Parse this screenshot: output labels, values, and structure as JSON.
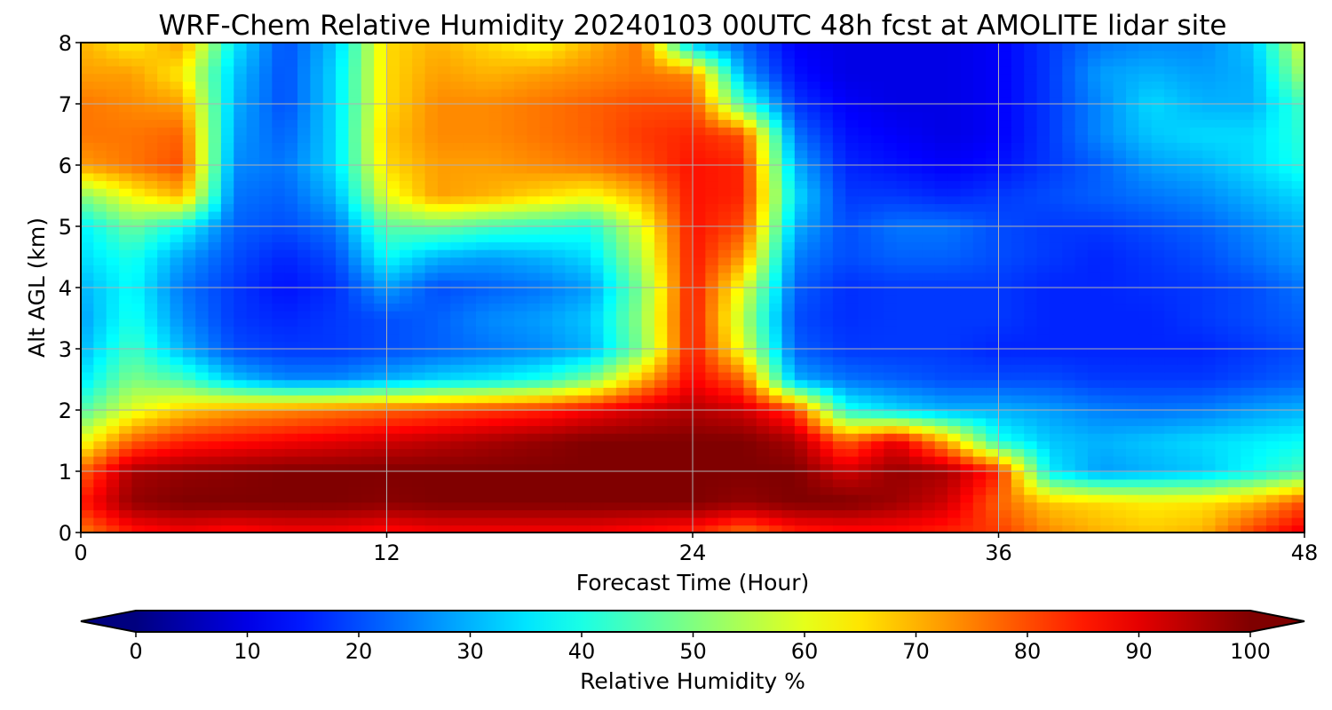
{
  "chart_data": {
    "type": "heatmap",
    "title": "WRF-Chem Relative Humidity 20240103 00UTC 48h fcst at AMOLITE lidar site",
    "xlabel": "Forecast Time (Hour)",
    "ylabel": "Alt AGL (km)",
    "xlim": [
      0,
      48
    ],
    "ylim": [
      0,
      8
    ],
    "x_ticks": [
      "0",
      "12",
      "24",
      "36",
      "48"
    ],
    "y_ticks": [
      "0",
      "1",
      "2",
      "3",
      "4",
      "5",
      "6",
      "7",
      "8"
    ],
    "grid": true,
    "colormap": "jet",
    "colorbar": {
      "label": "Relative Humidity %",
      "range": [
        0,
        100
      ],
      "ticks": [
        "0",
        "10",
        "20",
        "30",
        "40",
        "50",
        "60",
        "70",
        "80",
        "90",
        "100"
      ],
      "extend": "both",
      "orientation": "horizontal",
      "placement": "bottom"
    },
    "x": [
      0,
      2,
      4,
      6,
      8,
      10,
      12,
      14,
      16,
      18,
      20,
      22,
      24,
      26,
      28,
      30,
      32,
      34,
      36,
      38,
      40,
      42,
      44,
      46,
      48
    ],
    "y": [
      0,
      0.5,
      1,
      1.5,
      2,
      2.5,
      3,
      3.5,
      4,
      4.5,
      5,
      5.5,
      6,
      6.5,
      7,
      7.5,
      8
    ],
    "z": [
      [
        75,
        85,
        88,
        86,
        88,
        88,
        86,
        88,
        88,
        88,
        88,
        86,
        84,
        76,
        84,
        86,
        86,
        84,
        82,
        74,
        70,
        68,
        70,
        82,
        90
      ],
      [
        85,
        98,
        100,
        100,
        100,
        100,
        99,
        100,
        100,
        100,
        100,
        100,
        100,
        98,
        100,
        100,
        97,
        92,
        78,
        68,
        66,
        64,
        65,
        70,
        80
      ],
      [
        78,
        96,
        98,
        99,
        100,
        100,
        100,
        100,
        100,
        100,
        100,
        100,
        100,
        100,
        100,
        92,
        98,
        96,
        84,
        36,
        28,
        30,
        32,
        38,
        45
      ],
      [
        60,
        78,
        84,
        86,
        88,
        90,
        92,
        94,
        96,
        98,
        100,
        100,
        100,
        100,
        96,
        78,
        90,
        70,
        40,
        32,
        30,
        32,
        34,
        36,
        38
      ],
      [
        45,
        60,
        68,
        72,
        74,
        76,
        78,
        80,
        82,
        84,
        88,
        92,
        95,
        92,
        82,
        40,
        34,
        30,
        30,
        28,
        25,
        24,
        25,
        28,
        30
      ],
      [
        35,
        50,
        45,
        32,
        26,
        26,
        30,
        34,
        36,
        40,
        50,
        70,
        88,
        78,
        30,
        24,
        22,
        20,
        20,
        20,
        18,
        18,
        18,
        20,
        22
      ],
      [
        30,
        44,
        30,
        20,
        18,
        18,
        20,
        22,
        24,
        26,
        30,
        50,
        86,
        60,
        22,
        18,
        18,
        18,
        16,
        16,
        16,
        16,
        16,
        18,
        20
      ],
      [
        28,
        40,
        26,
        18,
        16,
        18,
        20,
        22,
        26,
        28,
        32,
        52,
        86,
        55,
        20,
        17,
        18,
        18,
        18,
        16,
        16,
        16,
        18,
        20,
        22
      ],
      [
        30,
        38,
        24,
        18,
        14,
        17,
        28,
        20,
        22,
        24,
        28,
        50,
        86,
        60,
        22,
        17,
        18,
        18,
        18,
        16,
        16,
        17,
        18,
        20,
        24
      ],
      [
        34,
        40,
        28,
        20,
        16,
        20,
        38,
        30,
        28,
        30,
        34,
        55,
        86,
        72,
        25,
        20,
        22,
        22,
        20,
        18,
        16,
        18,
        20,
        24,
        28
      ],
      [
        36,
        48,
        38,
        22,
        20,
        24,
        46,
        48,
        44,
        42,
        40,
        60,
        86,
        80,
        30,
        20,
        24,
        24,
        20,
        18,
        18,
        20,
        22,
        26,
        30
      ],
      [
        50,
        62,
        70,
        24,
        22,
        30,
        60,
        72,
        70,
        66,
        62,
        70,
        86,
        84,
        35,
        18,
        18,
        16,
        18,
        20,
        22,
        24,
        26,
        30,
        34
      ],
      [
        72,
        76,
        80,
        26,
        24,
        34,
        66,
        72,
        72,
        74,
        76,
        80,
        86,
        84,
        30,
        16,
        14,
        12,
        14,
        18,
        22,
        28,
        30,
        34,
        40
      ],
      [
        76,
        76,
        78,
        28,
        22,
        34,
        68,
        74,
        74,
        76,
        78,
        82,
        84,
        80,
        24,
        14,
        12,
        10,
        12,
        18,
        26,
        32,
        34,
        34,
        42
      ],
      [
        76,
        74,
        72,
        30,
        20,
        34,
        66,
        74,
        74,
        76,
        78,
        80,
        80,
        44,
        18,
        12,
        10,
        10,
        12,
        18,
        26,
        34,
        30,
        30,
        44
      ],
      [
        72,
        72,
        64,
        32,
        20,
        34,
        66,
        72,
        70,
        72,
        74,
        76,
        74,
        28,
        14,
        10,
        10,
        10,
        12,
        18,
        28,
        30,
        28,
        30,
        54
      ],
      [
        70,
        64,
        72,
        36,
        20,
        32,
        66,
        70,
        66,
        62,
        70,
        76,
        30,
        22,
        12,
        10,
        10,
        10,
        12,
        18,
        24,
        26,
        26,
        32,
        60
      ]
    ]
  }
}
